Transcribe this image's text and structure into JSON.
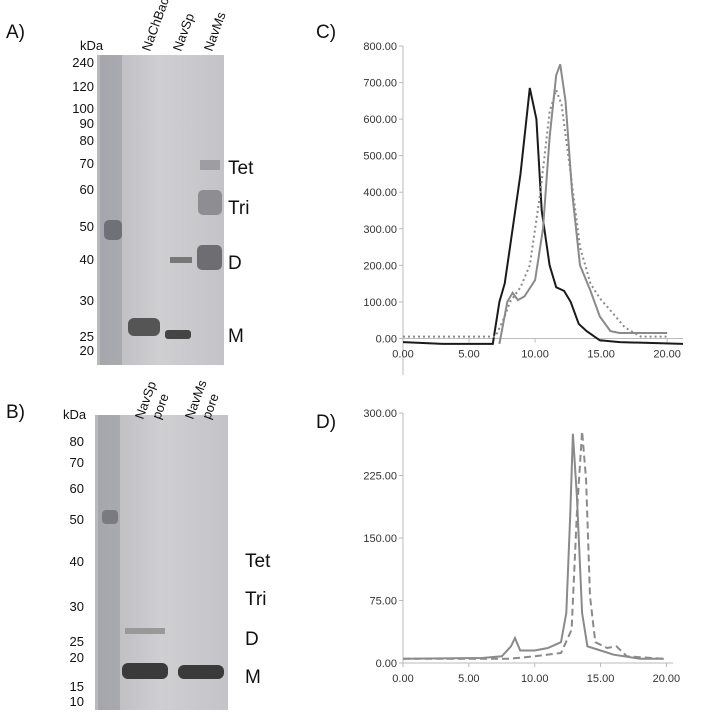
{
  "panel_labels": [
    "A)",
    "B)",
    "C)",
    "D)"
  ],
  "gels": [
    {
      "unit": "kDa",
      "markers": [
        "240",
        "120",
        "100",
        "90",
        "80",
        "70",
        "60",
        "50",
        "40",
        "30",
        "25",
        "20"
      ],
      "lanes": [
        [
          "NaChBac"
        ],
        [
          "NavSp"
        ],
        [
          "NavMs"
        ]
      ],
      "bands": [
        "Tet",
        "Tri",
        "D",
        "M"
      ]
    },
    {
      "unit": "kDa",
      "markers": [
        "80",
        "70",
        "60",
        "50",
        "40",
        "30",
        "25",
        "20",
        "15",
        "10"
      ],
      "lanes": [
        [
          "NavSp",
          "pore"
        ],
        [
          "NavMs",
          "pore"
        ]
      ],
      "bands": [
        "Tet",
        "Tri",
        "D",
        "M"
      ]
    }
  ],
  "chart_data": [
    {
      "type": "line",
      "xlim": [
        0,
        21.2
      ],
      "ylim": [
        -100,
        800
      ],
      "xticks": [
        {
          "value": 0,
          "label": "0.00"
        },
        {
          "value": 5,
          "label": "5.00"
        },
        {
          "value": 10,
          "label": "10.00"
        },
        {
          "value": 15,
          "label": "15.00"
        },
        {
          "value": 20,
          "label": "20.00"
        }
      ],
      "yticks": [
        {
          "value": 0,
          "label": "0.00"
        },
        {
          "value": 100,
          "label": "100.00"
        },
        {
          "value": 200,
          "label": "200.00"
        },
        {
          "value": 300,
          "label": "300.00"
        },
        {
          "value": 400,
          "label": "400.00"
        },
        {
          "value": 500,
          "label": "500.00"
        },
        {
          "value": 600,
          "label": "600.00"
        },
        {
          "value": 700,
          "label": "700.00"
        },
        {
          "value": 800,
          "label": "800.00"
        }
      ],
      "series": [
        {
          "color": "#1a1a1a",
          "style": "solid",
          "x": [
            0,
            3,
            6.8,
            7.3,
            7.7,
            8.1,
            8.9,
            9.6,
            10.1,
            10.5,
            11.1,
            11.6,
            12.2,
            12.7,
            13.3,
            13.9,
            14.9,
            16.4,
            21.2
          ],
          "values": [
            -10,
            -15,
            -15,
            100,
            150,
            250,
            450,
            685,
            600,
            350,
            200,
            140,
            130,
            100,
            40,
            20,
            -5,
            -10,
            -15
          ]
        },
        {
          "color": "#8a8a8a",
          "style": "dotted",
          "x": [
            0,
            7.0,
            7.7,
            8.1,
            8.9,
            9.6,
            10.4,
            11.1,
            11.6,
            12.0,
            12.7,
            13.4,
            14.2,
            14.9,
            16.1,
            16.8,
            18.0,
            20
          ],
          "values": [
            5,
            5,
            60,
            100,
            140,
            200,
            400,
            620,
            680,
            640,
            450,
            250,
            150,
            110,
            60,
            30,
            5,
            5
          ]
        },
        {
          "color": "#8a8a8a",
          "style": "solid",
          "x": [
            7.3,
            7.9,
            8.3,
            8.7,
            9.2,
            10.0,
            10.6,
            11.1,
            11.6,
            11.9,
            12.3,
            12.8,
            13.4,
            14.2,
            14.9,
            15.7,
            16.4,
            20
          ],
          "values": [
            -15,
            100,
            125,
            105,
            115,
            160,
            300,
            550,
            720,
            750,
            650,
            400,
            200,
            130,
            60,
            20,
            15,
            15
          ]
        }
      ]
    },
    {
      "type": "line",
      "xlim": [
        0,
        20.5
      ],
      "ylim": [
        0,
        300
      ],
      "xticks": [
        {
          "value": 0,
          "label": "0.00"
        },
        {
          "value": 5,
          "label": "5.00"
        },
        {
          "value": 10,
          "label": "10.00"
        },
        {
          "value": 15,
          "label": "15.00"
        },
        {
          "value": 20,
          "label": "20.00"
        }
      ],
      "yticks": [
        {
          "value": 0,
          "label": "0.00"
        },
        {
          "value": 75,
          "label": "75.00"
        },
        {
          "value": 150,
          "label": "150.00"
        },
        {
          "value": 225,
          "label": "225.00"
        },
        {
          "value": 300,
          "label": "300.00"
        }
      ],
      "series": [
        {
          "color": "#8a8a8a",
          "style": "solid",
          "x": [
            0,
            6,
            7.5,
            8.2,
            8.5,
            8.9,
            10,
            11,
            12,
            12.4,
            12.7,
            12.9,
            13.2,
            13.6,
            14,
            15,
            16,
            18,
            19.8
          ],
          "values": [
            5,
            6,
            8,
            20,
            30,
            15,
            15,
            18,
            25,
            60,
            180,
            275,
            200,
            60,
            20,
            15,
            10,
            5,
            5
          ]
        },
        {
          "color": "#8a8a8a",
          "style": "dashed",
          "x": [
            0,
            8,
            10,
            12,
            12.8,
            13.2,
            13.6,
            13.9,
            14.2,
            14.6,
            15.5,
            16.2,
            17,
            19.8
          ],
          "values": [
            5,
            5,
            8,
            12,
            40,
            180,
            278,
            220,
            80,
            25,
            18,
            20,
            8,
            5
          ]
        }
      ]
    }
  ]
}
